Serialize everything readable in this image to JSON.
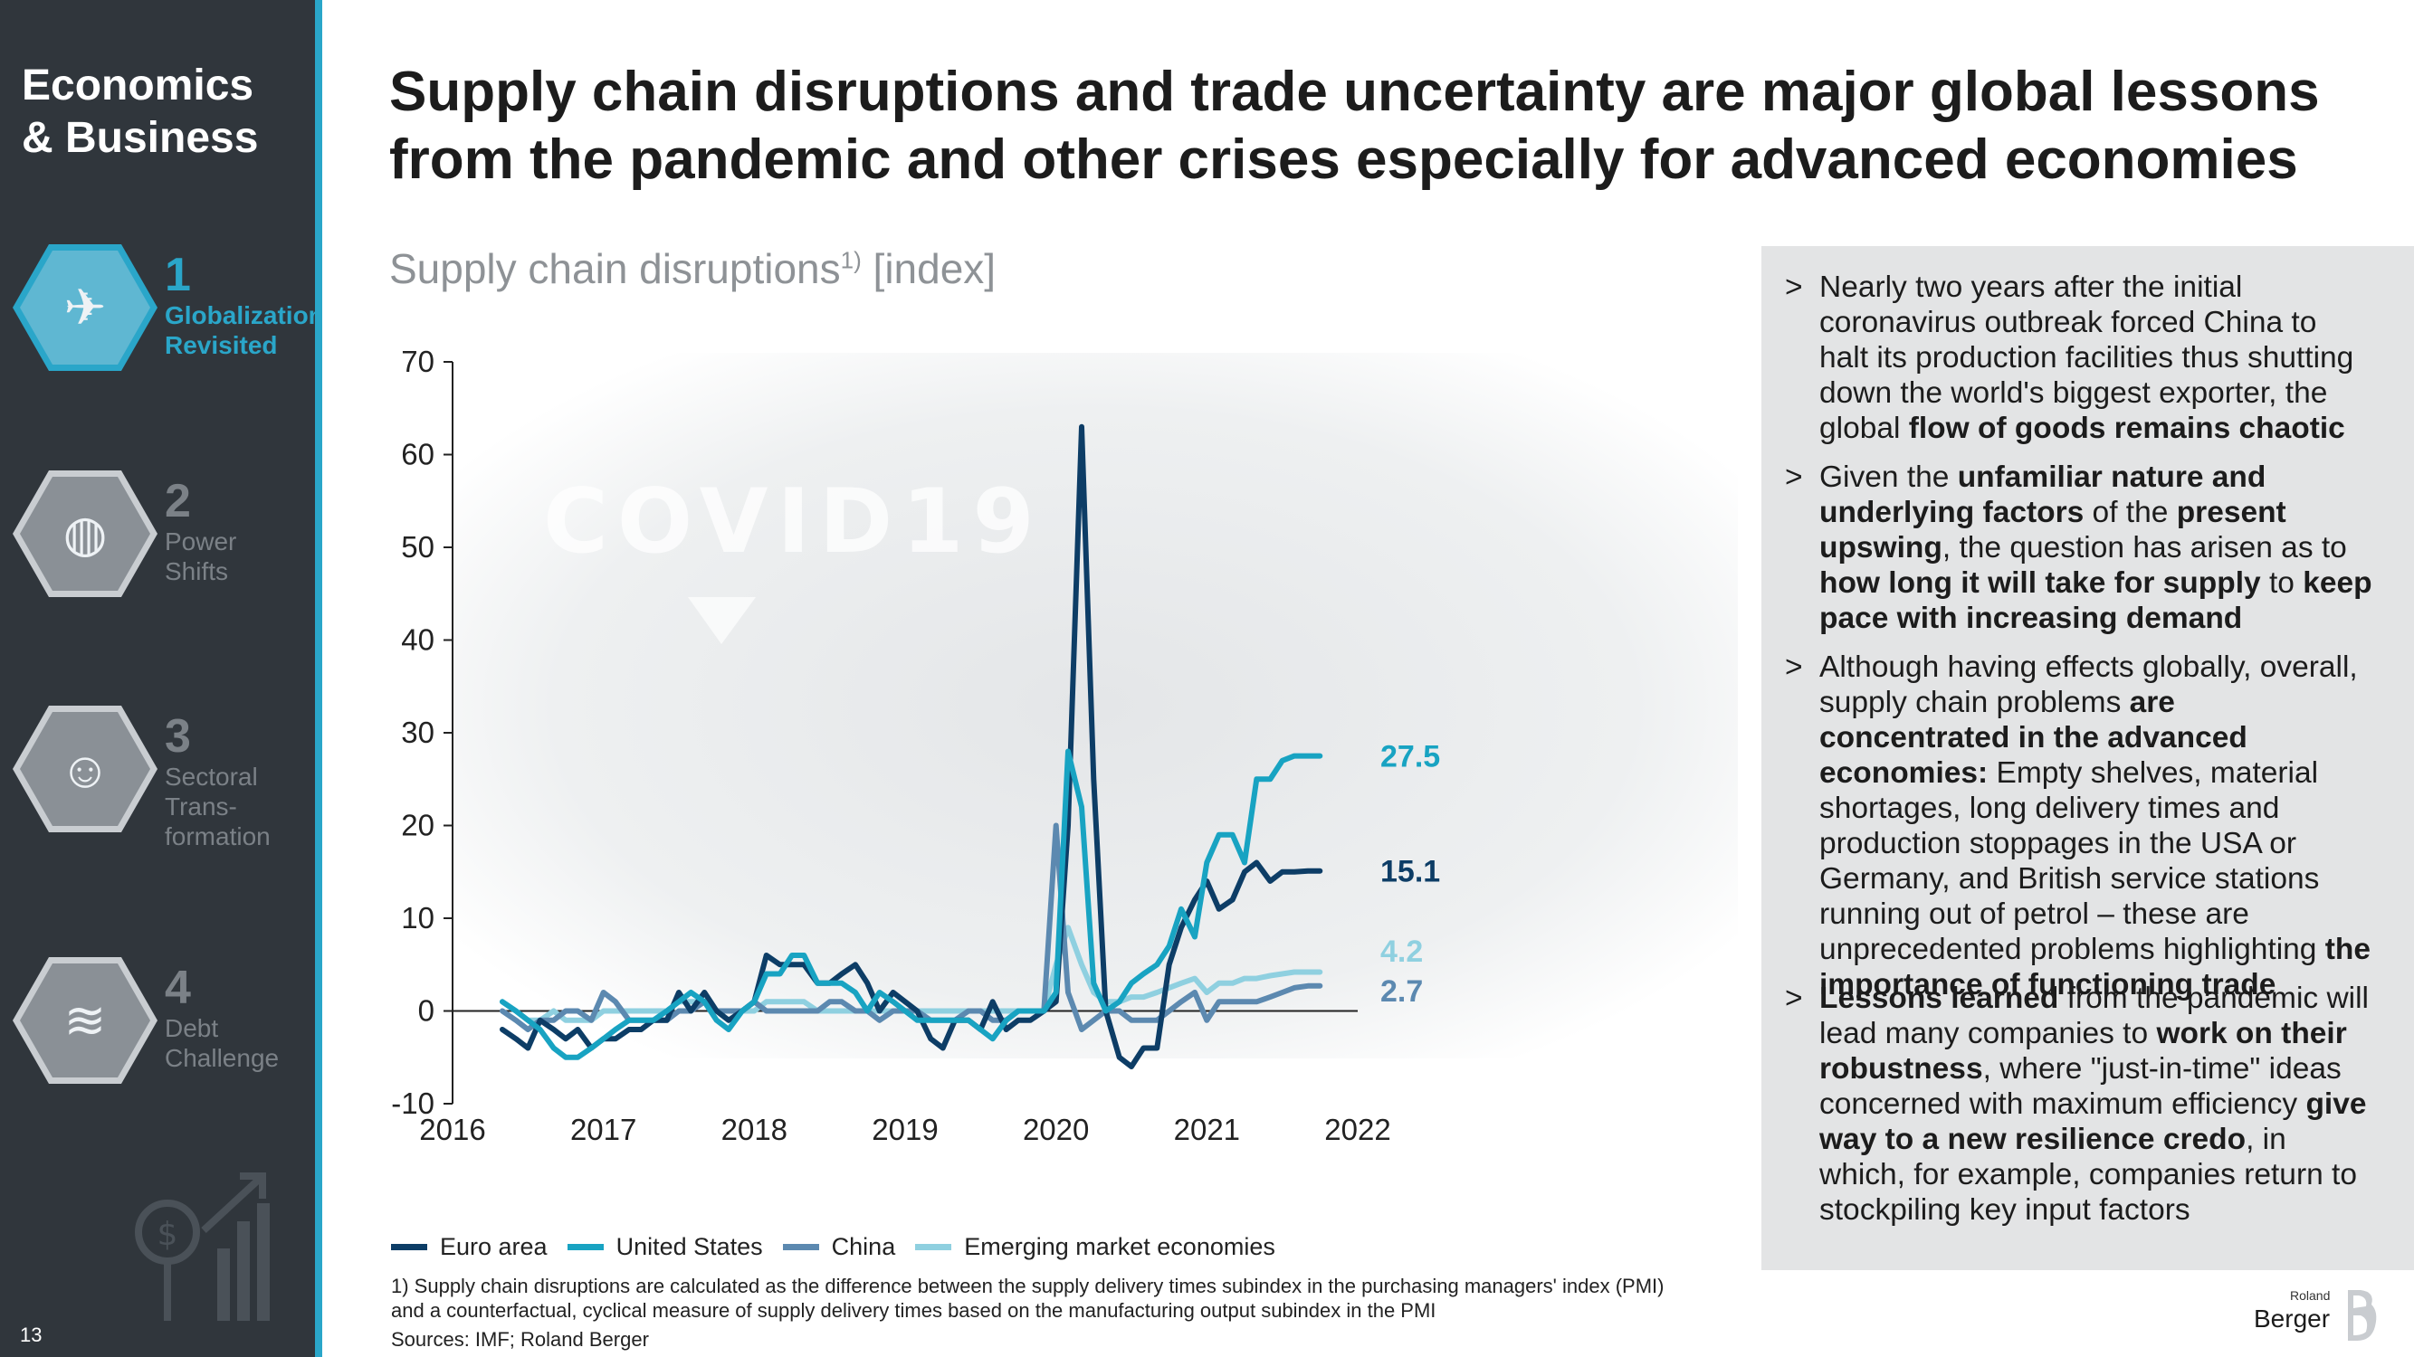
{
  "sidebar": {
    "title_line1": "Economics",
    "title_line2": "& Business",
    "items": [
      {
        "number": "1",
        "label_line1": "Globalization",
        "label_line2": "Revisited",
        "label_line3": "",
        "icon": "globalization-icon",
        "active": true
      },
      {
        "number": "2",
        "label_line1": "Power",
        "label_line2": "Shifts",
        "label_line3": "",
        "icon": "globe-icon",
        "active": false
      },
      {
        "number": "3",
        "label_line1": "Sectoral",
        "label_line2": "Trans-",
        "label_line3": "formation",
        "icon": "workers-icon",
        "active": false
      },
      {
        "number": "4",
        "label_line1": "Debt",
        "label_line2": "Challenge",
        "label_line3": "",
        "icon": "coins-icon",
        "active": false
      }
    ],
    "page_number": "13"
  },
  "headline": {
    "line1": "Supply chain disruptions and trade uncertainty are major global lessons",
    "line2": "from the pandemic and other crises especially for advanced economies"
  },
  "chart_data": {
    "type": "line",
    "title": "Supply chain disruptions",
    "title_sup": "1)",
    "title_unit": "[index]",
    "background_watermark": "COVID19",
    "xlabel": "",
    "ylabel": "",
    "xlim": [
      2016,
      2022
    ],
    "ylim": [
      -10,
      70
    ],
    "x_ticks": [
      "2016",
      "2017",
      "2018",
      "2019",
      "2020",
      "2021",
      "2022"
    ],
    "y_ticks": [
      "70",
      "60",
      "50",
      "40",
      "30",
      "20",
      "10",
      "0",
      "-10"
    ],
    "series": [
      {
        "name": "Euro area",
        "color": "#0d3d66",
        "end_label": "15.1",
        "x": [
          2016.33,
          2016.42,
          2016.5,
          2016.58,
          2016.67,
          2016.75,
          2016.83,
          2016.92,
          2017.0,
          2017.08,
          2017.17,
          2017.25,
          2017.33,
          2017.42,
          2017.5,
          2017.58,
          2017.67,
          2017.75,
          2017.83,
          2017.92,
          2018.0,
          2018.08,
          2018.17,
          2018.25,
          2018.33,
          2018.42,
          2018.5,
          2018.58,
          2018.67,
          2018.75,
          2018.83,
          2018.92,
          2019.0,
          2019.08,
          2019.17,
          2019.25,
          2019.33,
          2019.42,
          2019.5,
          2019.58,
          2019.67,
          2019.75,
          2019.83,
          2019.92,
          2020.0,
          2020.08,
          2020.17,
          2020.25,
          2020.33,
          2020.42,
          2020.5,
          2020.58,
          2020.67,
          2020.75,
          2020.83,
          2020.92,
          2021.0,
          2021.08,
          2021.17,
          2021.25,
          2021.33,
          2021.42,
          2021.5,
          2021.58,
          2021.67,
          2021.75
        ],
        "values": [
          -2,
          -3,
          -4,
          -1,
          -2,
          -3,
          -2,
          -4,
          -3,
          -3,
          -2,
          -2,
          -1,
          -1,
          2,
          0,
          2,
          0,
          -1,
          0,
          1,
          6,
          5,
          5,
          5,
          3,
          3,
          4,
          5,
          3,
          0,
          2,
          1,
          0,
          -3,
          -4,
          -1,
          -1,
          -2,
          1,
          -2,
          -1,
          -1,
          0,
          1,
          20,
          63,
          25,
          0,
          -5,
          -6,
          -4,
          -4,
          5,
          9,
          12,
          14,
          11,
          12,
          15,
          16,
          14,
          15,
          15,
          15.1,
          15.1
        ]
      },
      {
        "name": "United States",
        "color": "#18a3c2",
        "end_label": "27.5",
        "x": [
          2016.33,
          2016.42,
          2016.5,
          2016.58,
          2016.67,
          2016.75,
          2016.83,
          2016.92,
          2017.0,
          2017.08,
          2017.17,
          2017.25,
          2017.33,
          2017.42,
          2017.5,
          2017.58,
          2017.67,
          2017.75,
          2017.83,
          2017.92,
          2018.0,
          2018.08,
          2018.17,
          2018.25,
          2018.33,
          2018.42,
          2018.5,
          2018.58,
          2018.67,
          2018.75,
          2018.83,
          2018.92,
          2019.0,
          2019.08,
          2019.17,
          2019.25,
          2019.33,
          2019.42,
          2019.5,
          2019.58,
          2019.67,
          2019.75,
          2019.83,
          2019.92,
          2020.0,
          2020.08,
          2020.17,
          2020.25,
          2020.33,
          2020.42,
          2020.5,
          2020.58,
          2020.67,
          2020.75,
          2020.83,
          2020.92,
          2021.0,
          2021.08,
          2021.17,
          2021.25,
          2021.33,
          2021.42,
          2021.5,
          2021.58,
          2021.67,
          2021.75
        ],
        "values": [
          1,
          0,
          -1,
          -2,
          -4,
          -5,
          -5,
          -4,
          -3,
          -2,
          -1,
          -1,
          -1,
          0,
          1,
          2,
          1,
          -1,
          -2,
          0,
          1,
          4,
          4,
          6,
          6,
          3,
          3,
          3,
          2,
          0,
          2,
          1,
          0,
          -1,
          -1,
          -1,
          -1,
          -1,
          -2,
          -3,
          -1,
          0,
          0,
          0,
          2,
          28,
          22,
          3,
          0,
          1,
          3,
          4,
          5,
          7,
          11,
          8,
          16,
          19,
          19,
          16,
          25,
          25,
          27,
          27.5,
          27.5,
          27.5
        ]
      },
      {
        "name": "China",
        "color": "#5c89b0",
        "end_label": "2.7",
        "x": [
          2016.33,
          2016.42,
          2016.5,
          2016.58,
          2016.67,
          2016.75,
          2016.83,
          2016.92,
          2017.0,
          2017.08,
          2017.17,
          2017.25,
          2017.33,
          2017.42,
          2017.5,
          2017.58,
          2017.67,
          2017.75,
          2017.83,
          2017.92,
          2018.0,
          2018.08,
          2018.17,
          2018.25,
          2018.33,
          2018.42,
          2018.5,
          2018.58,
          2018.67,
          2018.75,
          2018.83,
          2018.92,
          2019.0,
          2019.08,
          2019.17,
          2019.25,
          2019.33,
          2019.42,
          2019.5,
          2019.58,
          2019.67,
          2019.75,
          2019.83,
          2019.92,
          2020.0,
          2020.08,
          2020.17,
          2020.25,
          2020.33,
          2020.42,
          2020.5,
          2020.58,
          2020.67,
          2020.75,
          2020.83,
          2020.92,
          2021.0,
          2021.08,
          2021.17,
          2021.25,
          2021.33,
          2021.42,
          2021.5,
          2021.58,
          2021.67,
          2021.75
        ],
        "values": [
          0,
          -1,
          -2,
          -1,
          -1,
          0,
          0,
          -1,
          2,
          1,
          -1,
          -1,
          -1,
          -1,
          0,
          0,
          1,
          0,
          0,
          0,
          1,
          0,
          0,
          0,
          0,
          0,
          1,
          1,
          0,
          0,
          -1,
          0,
          0,
          0,
          -1,
          -1,
          -1,
          0,
          0,
          -1,
          -1,
          0,
          0,
          0,
          20,
          2,
          -2,
          -1,
          0,
          0,
          -1,
          -1,
          -1,
          0,
          1,
          2,
          -1,
          1,
          1,
          1,
          1,
          1.5,
          2,
          2.5,
          2.7,
          2.7
        ]
      },
      {
        "name": "Emerging market economies",
        "color": "#8fd0e0",
        "end_label": "4.2",
        "x": [
          2016.33,
          2016.42,
          2016.5,
          2016.58,
          2016.67,
          2016.75,
          2016.83,
          2016.92,
          2017.0,
          2017.08,
          2017.17,
          2017.25,
          2017.33,
          2017.42,
          2017.5,
          2017.58,
          2017.67,
          2017.75,
          2017.83,
          2017.92,
          2018.0,
          2018.08,
          2018.17,
          2018.25,
          2018.33,
          2018.42,
          2018.5,
          2018.58,
          2018.67,
          2018.75,
          2018.83,
          2018.92,
          2019.0,
          2019.08,
          2019.17,
          2019.25,
          2019.33,
          2019.42,
          2019.5,
          2019.58,
          2019.67,
          2019.75,
          2019.83,
          2019.92,
          2020.0,
          2020.08,
          2020.17,
          2020.25,
          2020.33,
          2020.42,
          2020.5,
          2020.58,
          2020.67,
          2020.75,
          2020.83,
          2020.92,
          2021.0,
          2021.08,
          2021.17,
          2021.25,
          2021.33,
          2021.42,
          2021.5,
          2021.58,
          2021.67,
          2021.75
        ],
        "values": [
          1,
          0,
          -1,
          -1,
          0,
          -1,
          -1,
          -1,
          0,
          0,
          0,
          0,
          0,
          0,
          1,
          1,
          1,
          0,
          0,
          0,
          0,
          1,
          1,
          1,
          1,
          0,
          0,
          0,
          0,
          0,
          0,
          0,
          0,
          0,
          0,
          0,
          0,
          0,
          0,
          0,
          0,
          0,
          0,
          0,
          5,
          9,
          5,
          2,
          1,
          1,
          1.5,
          1.5,
          2,
          2.5,
          3,
          3.5,
          2,
          3,
          3,
          3.5,
          3.5,
          3.8,
          4,
          4.2,
          4.2,
          4.2
        ]
      }
    ]
  },
  "footnote": "1) Supply chain disruptions are calculated as the difference between the supply delivery times subindex in the purchasing managers' index (PMI) and a counterfactual, cyclical measure of supply delivery times based on the manufacturing output subindex in the PMI",
  "sources": "Sources: IMF; Roland Berger",
  "panel": {
    "marker": ">",
    "b1": {
      "t1": "Nearly two years after the initial coronavirus outbreak forced China to halt its production facilities thus shutting down the world's biggest exporter, the global ",
      "b1": "flow of goods remains chaotic"
    },
    "b2": {
      "t1": "Given the ",
      "b1": "unfamiliar nature and underlying factors",
      "t2": " of the ",
      "b2": "present upswing",
      "t3": ", the question has arisen as to ",
      "b3": "how long it will take for supply",
      "t4": " to ",
      "b4": "keep pace with increasing demand"
    },
    "b3": {
      "t1": "Although having effects globally, overall, supply chain problems ",
      "b1": "are concentrated in the advanced economies:",
      "t2": " Empty shelves, material shortages, long delivery times and production stoppages in the USA or Germany, and British service stations running out of petrol – these are unprecedented problems highlighting ",
      "b2": "the importance of functioning trade"
    },
    "b4": {
      "b1": "Lessons learned",
      "t1": " from the pandemic will lead many companies to ",
      "b2": "work on their robustness",
      "t2": ", where \"just-in-time\" ideas concerned with maximum efficiency ",
      "b3": "give way to a new resilience credo",
      "t3": ", in which, for example, companies return to stockpiling key input factors"
    }
  },
  "logo": {
    "small": "Roland",
    "main": "Berger"
  }
}
